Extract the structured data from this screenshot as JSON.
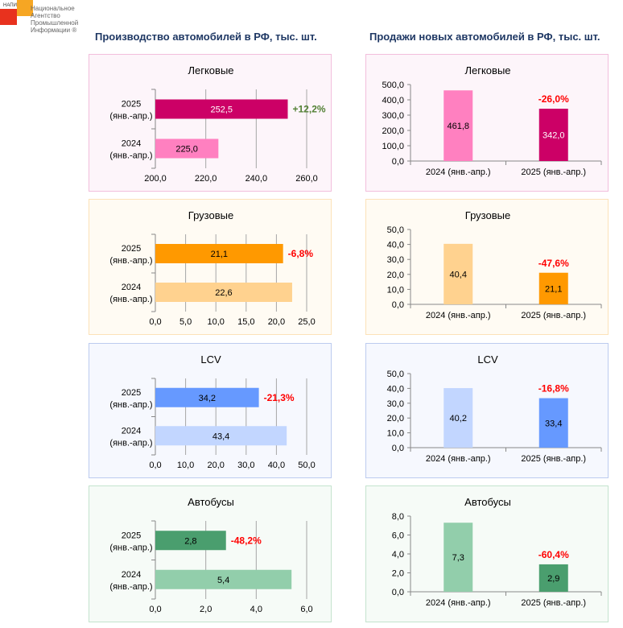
{
  "logo": {
    "abbr": "НАПИ",
    "name": "Национальное Агентство Промышленной Информации ®"
  },
  "headings": {
    "production": "Производство автомобилей в РФ, тыс. шт.",
    "sales": "Продажи новых автомобилей в РФ, тыс. шт."
  },
  "chart_data": [
    {
      "type": "bar",
      "orientation": "horizontal",
      "group": "production",
      "title": "Легковые",
      "categories": [
        "2025\n(янв.-апр.)",
        "2024\n(янв.-апр.)"
      ],
      "values": [
        252.5,
        225.0
      ],
      "labels": [
        "252,5",
        "225,0"
      ],
      "xlim": [
        200,
        260
      ],
      "ticks": [
        "200,0",
        "220,0",
        "240,0",
        "260,0"
      ],
      "tick_values": [
        200,
        220,
        240,
        260
      ],
      "change": "+12,2%",
      "change_color": "#538135",
      "colors": [
        "#CC0066",
        "#FF80C0"
      ],
      "value_text_colors": [
        "#ffffff",
        "#000000"
      ],
      "panel_border": "#F2BEDC",
      "panel_bg": "#FDF5FA"
    },
    {
      "type": "bar",
      "orientation": "horizontal",
      "group": "production",
      "title": "Грузовые",
      "categories": [
        "2025\n(янв.-апр.)",
        "2024\n(янв.-апр.)"
      ],
      "values": [
        21.1,
        22.6
      ],
      "labels": [
        "21,1",
        "22,6"
      ],
      "xlim": [
        0,
        25
      ],
      "ticks": [
        "0,0",
        "5,0",
        "10,0",
        "15,0",
        "20,0",
        "25,0"
      ],
      "tick_values": [
        0,
        5,
        10,
        15,
        20,
        25
      ],
      "change": "-6,8%",
      "change_color": "#FF0000",
      "colors": [
        "#FF9900",
        "#FFD28F"
      ],
      "value_text_colors": [
        "#000000",
        "#000000"
      ],
      "panel_border": "#FCE2B8",
      "panel_bg": "#FFFBF3"
    },
    {
      "type": "bar",
      "orientation": "horizontal",
      "group": "production",
      "title": "LCV",
      "categories": [
        "2025\n(янв.-апр.)",
        "2024\n(янв.-апр.)"
      ],
      "values": [
        34.2,
        43.4
      ],
      "labels": [
        "34,2",
        "43,4"
      ],
      "xlim": [
        0,
        50
      ],
      "ticks": [
        "0,0",
        "10,0",
        "20,0",
        "30,0",
        "40,0",
        "50,0"
      ],
      "tick_values": [
        0,
        10,
        20,
        30,
        40,
        50
      ],
      "change": "-21,3%",
      "change_color": "#FF0000",
      "colors": [
        "#6699FF",
        "#C2D6FF"
      ],
      "value_text_colors": [
        "#000000",
        "#000000"
      ],
      "panel_border": "#BCCBEF",
      "panel_bg": "#F6F8FE"
    },
    {
      "type": "bar",
      "orientation": "horizontal",
      "group": "production",
      "title": "Автобусы",
      "categories": [
        "2025\n(янв.-апр.)",
        "2024\n(янв.-апр.)"
      ],
      "values": [
        2.8,
        5.4
      ],
      "labels": [
        "2,8",
        "5,4"
      ],
      "xlim": [
        0,
        6
      ],
      "ticks": [
        "0,0",
        "2,0",
        "4,0",
        "6,0"
      ],
      "tick_values": [
        0,
        2,
        4,
        6
      ],
      "change": "-48,2%",
      "change_color": "#FF0000",
      "colors": [
        "#4A9E6E",
        "#92CEAB"
      ],
      "value_text_colors": [
        "#000000",
        "#000000"
      ],
      "panel_border": "#C4E3CE",
      "panel_bg": "#F6FBF7"
    },
    {
      "type": "bar",
      "orientation": "vertical",
      "group": "sales",
      "title": "Легковые",
      "categories": [
        "2024 (янв.-апр.)",
        "2025 (янв.-апр.)"
      ],
      "values": [
        461.8,
        342.0
      ],
      "labels": [
        "461,8",
        "342,0"
      ],
      "ylim": [
        0,
        500
      ],
      "ticks": [
        "0,0",
        "100,0",
        "200,0",
        "300,0",
        "400,0",
        "500,0"
      ],
      "tick_values": [
        0,
        100,
        200,
        300,
        400,
        500
      ],
      "change": "-26,0%",
      "change_color": "#FF0000",
      "colors": [
        "#FF80C0",
        "#CC0066"
      ],
      "value_text_colors": [
        "#000000",
        "#ffffff"
      ],
      "panel_border": "#F2BEDC",
      "panel_bg": "#FDF5FA"
    },
    {
      "type": "bar",
      "orientation": "vertical",
      "group": "sales",
      "title": "Грузовые",
      "categories": [
        "2024 (янв.-апр.)",
        "2025 (янв.-апр.)"
      ],
      "values": [
        40.4,
        21.1
      ],
      "labels": [
        "40,4",
        "21,1"
      ],
      "ylim": [
        0,
        50
      ],
      "ticks": [
        "0,0",
        "10,0",
        "20,0",
        "30,0",
        "40,0",
        "50,0"
      ],
      "tick_values": [
        0,
        10,
        20,
        30,
        40,
        50
      ],
      "change": "-47,6%",
      "change_color": "#FF0000",
      "colors": [
        "#FFD28F",
        "#FF9900"
      ],
      "value_text_colors": [
        "#000000",
        "#000000"
      ],
      "panel_border": "#FCE2B8",
      "panel_bg": "#FFFBF3"
    },
    {
      "type": "bar",
      "orientation": "vertical",
      "group": "sales",
      "title": "LCV",
      "categories": [
        "2024 (янв.-апр.)",
        "2025 (янв.-апр.)"
      ],
      "values": [
        40.2,
        33.4
      ],
      "labels": [
        "40,2",
        "33,4"
      ],
      "ylim": [
        0,
        50
      ],
      "ticks": [
        "0,0",
        "10,0",
        "20,0",
        "30,0",
        "40,0",
        "50,0"
      ],
      "tick_values": [
        0,
        10,
        20,
        30,
        40,
        50
      ],
      "change": "-16,8%",
      "change_color": "#FF0000",
      "colors": [
        "#C2D6FF",
        "#6699FF"
      ],
      "value_text_colors": [
        "#000000",
        "#000000"
      ],
      "panel_border": "#BCCBEF",
      "panel_bg": "#F6F8FE"
    },
    {
      "type": "bar",
      "orientation": "vertical",
      "group": "sales",
      "title": "Автобусы",
      "categories": [
        "2024 (янв.-апр.)",
        "2025 (янв.-апр.)"
      ],
      "values": [
        7.3,
        2.9
      ],
      "labels": [
        "7,3",
        "2,9"
      ],
      "ylim": [
        0,
        8
      ],
      "ticks": [
        "0,0",
        "2,0",
        "4,0",
        "6,0",
        "8,0"
      ],
      "tick_values": [
        0,
        2,
        4,
        6,
        8
      ],
      "change": "-60,4%",
      "change_color": "#FF0000",
      "colors": [
        "#92CEAB",
        "#4A9E6E"
      ],
      "value_text_colors": [
        "#000000",
        "#000000"
      ],
      "panel_border": "#C4E3CE",
      "panel_bg": "#F6FBF7"
    }
  ]
}
